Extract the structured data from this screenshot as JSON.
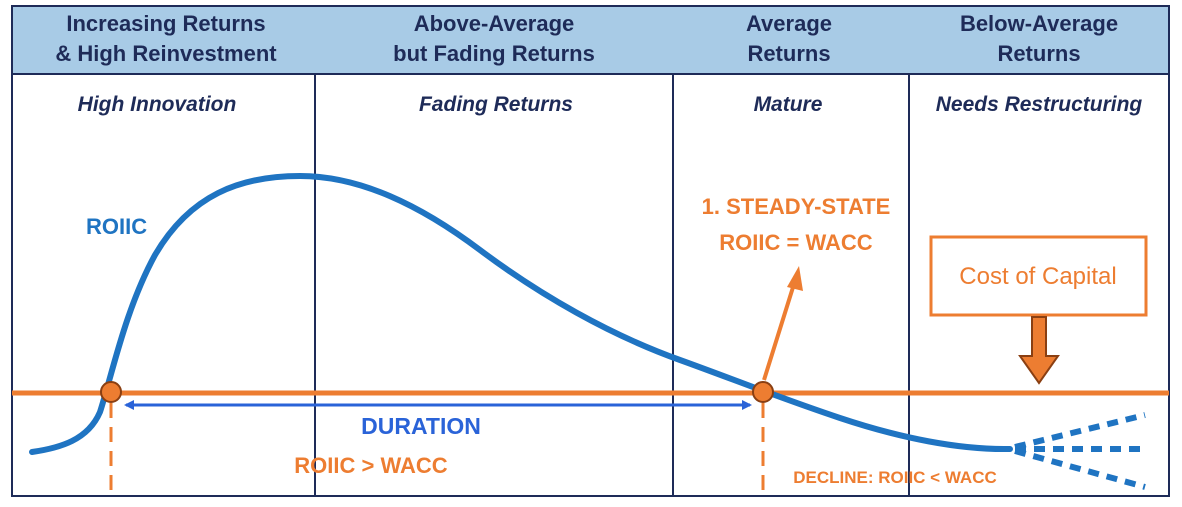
{
  "header": {
    "columns": [
      {
        "line1": "Increasing Returns",
        "line2": "& High Reinvestment"
      },
      {
        "line1": "Above-Average",
        "line2": "but Fading Returns"
      },
      {
        "line1": "Average",
        "line2": "Returns"
      },
      {
        "line1": "Below-Average",
        "line2": "Returns"
      }
    ]
  },
  "stages": [
    "High Innovation",
    "Fading Returns",
    "Mature",
    "Needs Restructuring"
  ],
  "labels": {
    "curve": "ROIIC",
    "steady_state_line1": "1. STEADY-STATE",
    "steady_state_line2": "ROIIC = WACC",
    "cost_of_capital": "Cost of Capital",
    "duration": "DURATION",
    "roiic_gt_wacc": "ROIIC > WACC",
    "decline": "DECLINE: ROIIC < WACC"
  },
  "colors": {
    "header_bg": "#a8cbe6",
    "frame": "#1e2b58",
    "curve": "#1f74c2",
    "orange": "#ed7d31",
    "duration_arrow": "#2a63d8"
  }
}
